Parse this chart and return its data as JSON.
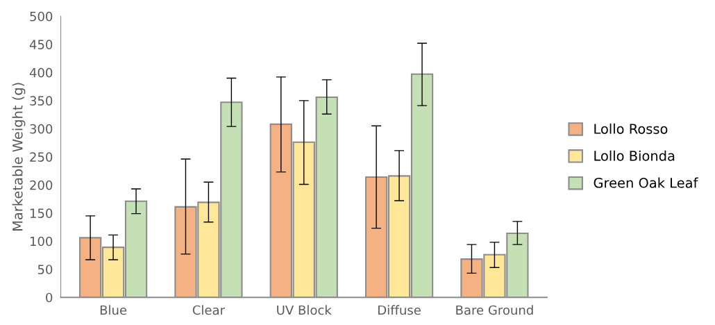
{
  "chart_data": {
    "type": "bar",
    "ylabel": "Marketable Weight (g)",
    "categories": [
      "Blue",
      "Clear",
      "UV Block",
      "Diffuse",
      "Bare Ground"
    ],
    "series": [
      {
        "name": "Lollo Rosso",
        "color": "#f4b183",
        "values": [
          106,
          161,
          308,
          214,
          68
        ],
        "errors": [
          [
            67,
            145
          ],
          [
            77,
            246
          ],
          [
            223,
            392
          ],
          [
            123,
            305
          ],
          [
            43,
            94
          ]
        ]
      },
      {
        "name": "Lollo Bionda",
        "color": "#ffe699",
        "values": [
          89,
          169,
          276,
          216,
          76
        ],
        "errors": [
          [
            67,
            111
          ],
          [
            134,
            205
          ],
          [
            201,
            350
          ],
          [
            172,
            261
          ],
          [
            53,
            98
          ]
        ]
      },
      {
        "name": "Green Oak Leaf",
        "color": "#c5e0b4",
        "values": [
          171,
          347,
          356,
          397,
          114
        ],
        "errors": [
          [
            149,
            193
          ],
          [
            304,
            390
          ],
          [
            326,
            387
          ],
          [
            341,
            452
          ],
          [
            94,
            135
          ]
        ]
      }
    ],
    "ylim": [
      0,
      500
    ],
    "yticks": [
      0,
      50,
      100,
      150,
      200,
      250,
      300,
      350,
      400,
      450,
      500
    ],
    "grid": false,
    "legend": "right"
  }
}
